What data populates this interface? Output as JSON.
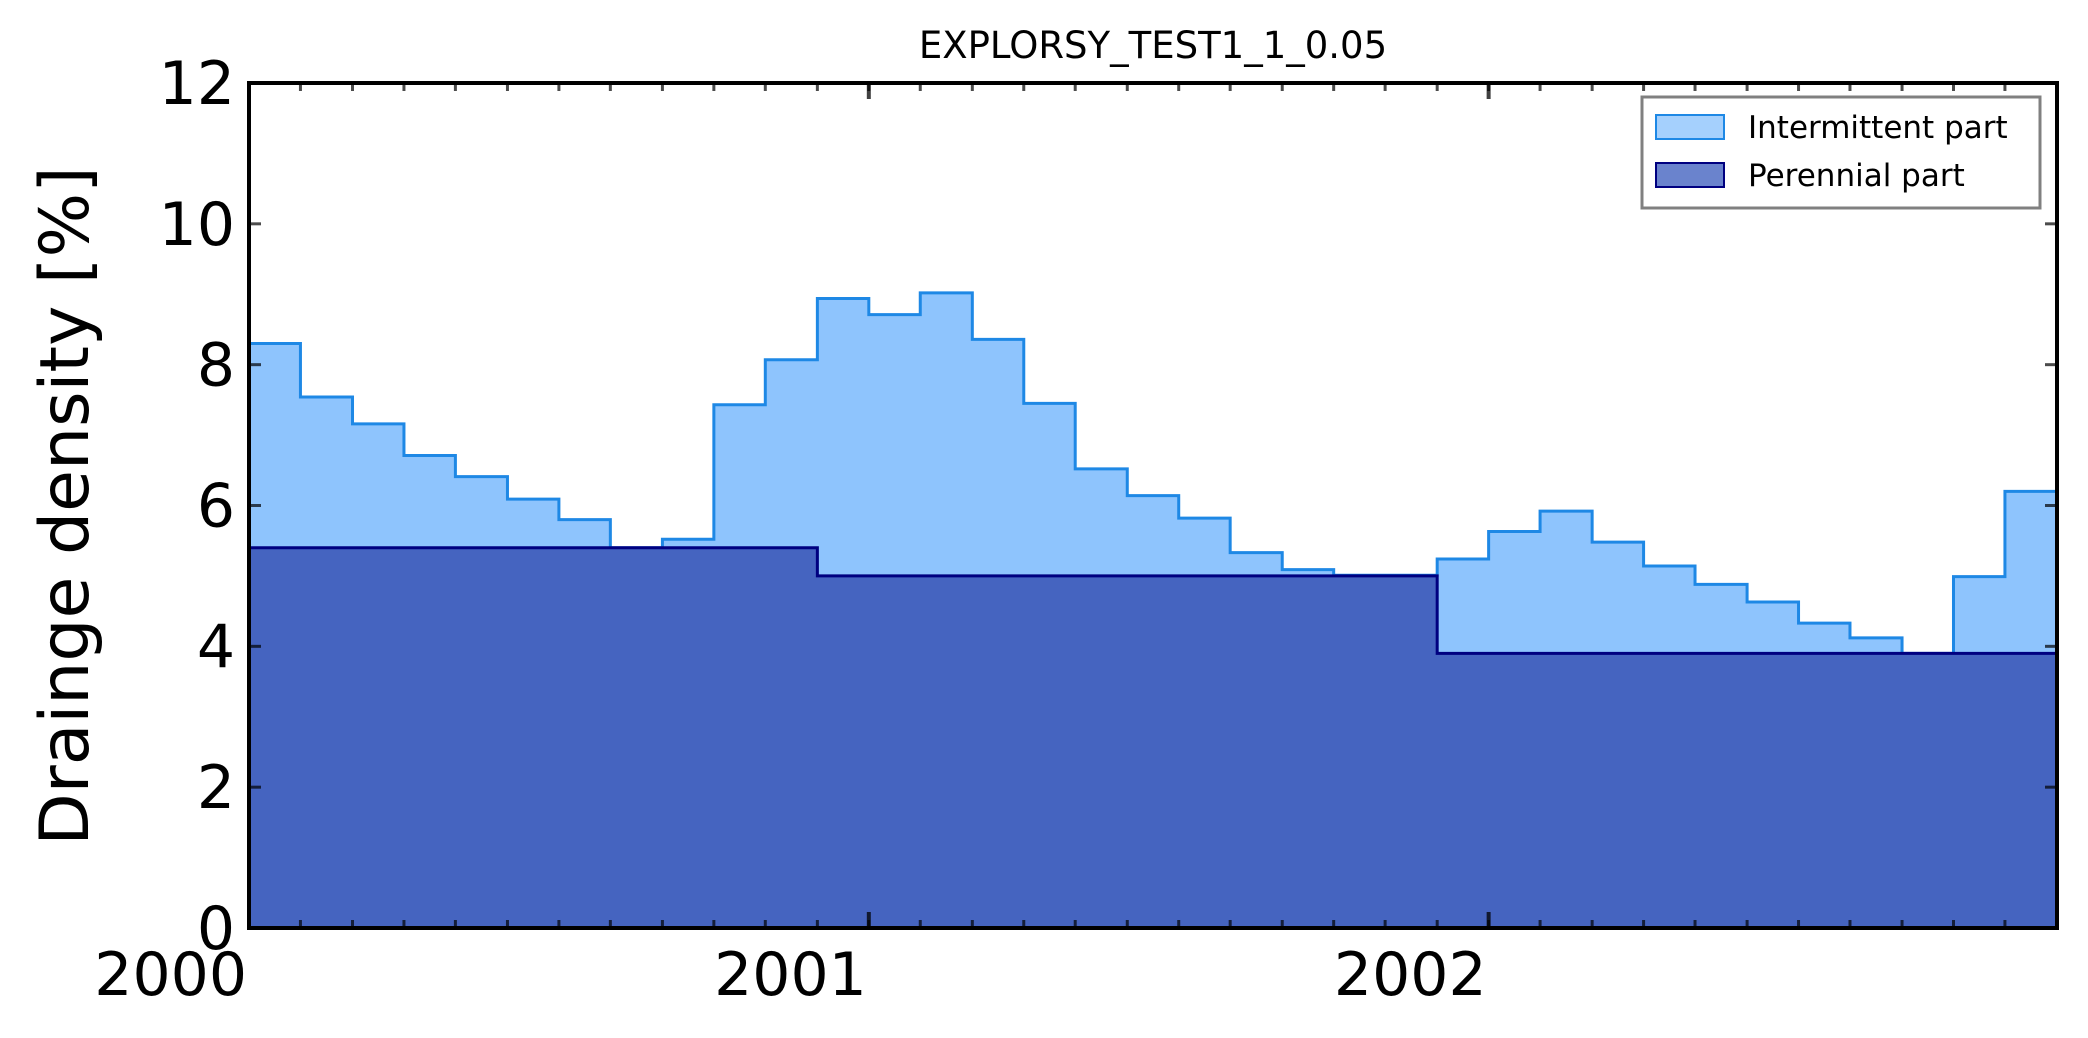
{
  "chart_data": {
    "type": "step-area",
    "title": "EXPLORSY_TEST1_1_0.05",
    "y_label": "Drainge density [%]",
    "x": [
      2000,
      2000.083,
      2000.167,
      2000.25,
      2000.333,
      2000.417,
      2000.5,
      2000.583,
      2000.667,
      2000.75,
      2000.833,
      2000.917,
      2001,
      2001.083,
      2001.167,
      2001.25,
      2001.333,
      2001.417,
      2001.5,
      2001.583,
      2001.667,
      2001.75,
      2001.833,
      2001.917,
      2002,
      2002.083,
      2002.167,
      2002.25,
      2002.333,
      2002.417,
      2002.5,
      2002.583,
      2002.667,
      2002.75,
      2002.833
    ],
    "series": [
      {
        "name": "Intermittent part",
        "color": "#8ec4fd",
        "edgecolor": "#1e88e5",
        "values": [
          8.3,
          7.54,
          7.16,
          6.71,
          6.41,
          6.09,
          5.8,
          5.4,
          5.52,
          7.43,
          8.07,
          8.94,
          8.71,
          9.02,
          8.36,
          7.45,
          6.52,
          6.14,
          5.82,
          5.33,
          5.09,
          5.01,
          5.01,
          5.24,
          5.63,
          5.92,
          5.48,
          5.14,
          4.88,
          4.63,
          4.33,
          4.12,
          3.9,
          4.99,
          6.2
        ]
      },
      {
        "name": "Perennial part",
        "color": "#4564c0",
        "edgecolor": "#000080",
        "values": [
          5.4,
          5.4,
          5.4,
          5.4,
          5.4,
          5.4,
          5.4,
          5.4,
          5.4,
          5.4,
          5.4,
          5.0,
          5.0,
          5.0,
          5.0,
          5.0,
          5.0,
          5.0,
          5.0,
          5.0,
          5.0,
          5.0,
          5.0,
          3.9,
          3.9,
          3.9,
          3.9,
          3.9,
          3.9,
          3.9,
          3.9,
          3.9,
          3.9,
          3.9,
          3.9
        ]
      }
    ],
    "xlim": [
      2000,
      2002.917
    ],
    "xticks": [
      2000,
      2001,
      2002
    ],
    "ylim": [
      0,
      12
    ],
    "yticks": [
      0,
      2,
      4,
      6,
      8,
      10,
      12
    ],
    "grid": false,
    "legend": "upper right"
  }
}
